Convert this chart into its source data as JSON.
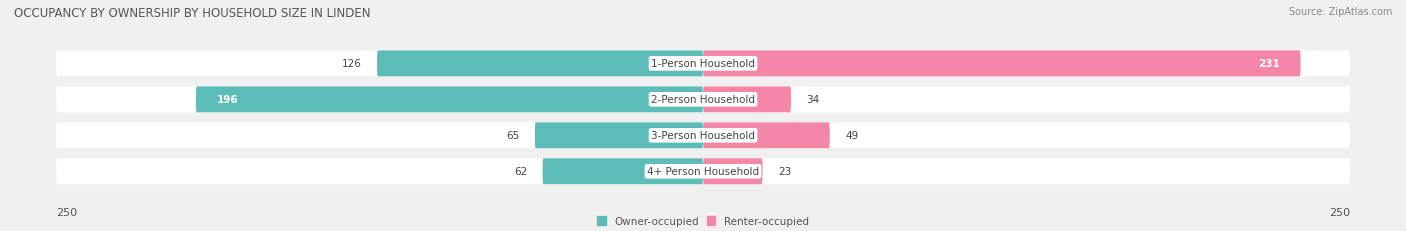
{
  "title": "OCCUPANCY BY OWNERSHIP BY HOUSEHOLD SIZE IN LINDEN",
  "source": "Source: ZipAtlas.com",
  "categories": [
    "1-Person Household",
    "2-Person Household",
    "3-Person Household",
    "4+ Person Household"
  ],
  "owner_values": [
    126,
    196,
    65,
    62
  ],
  "renter_values": [
    231,
    34,
    49,
    23
  ],
  "owner_color": "#5bbcb8",
  "renter_color": "#f487a8",
  "axis_max": 250,
  "bg_color": "#f0f0f0",
  "bar_bg_color": "#e0e0e0",
  "row_bg_color": "#ffffff",
  "legend_owner": "Owner-occupied",
  "legend_renter": "Renter-occupied",
  "title_fontsize": 8.5,
  "label_fontsize": 7.5,
  "tick_fontsize": 8,
  "source_fontsize": 7
}
